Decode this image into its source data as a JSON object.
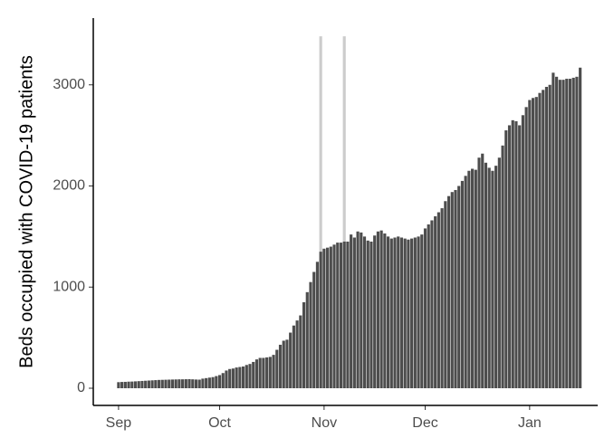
{
  "chart_data": {
    "type": "bar",
    "y_label": "Beds occupied with COVID-19 patients",
    "color": "#4d4d4d",
    "x": [
      0,
      1,
      2,
      3,
      4,
      5,
      6,
      7,
      8,
      9,
      10,
      11,
      12,
      13,
      14,
      15,
      16,
      17,
      18,
      19,
      20,
      21,
      22,
      23,
      24,
      25,
      26,
      27,
      28,
      29,
      30,
      31,
      32,
      33,
      34,
      35,
      36,
      37,
      38,
      39,
      40,
      41,
      42,
      43,
      44,
      45,
      46,
      47,
      48,
      49,
      50,
      51,
      52,
      53,
      54,
      55,
      56,
      57,
      58,
      59,
      60,
      61,
      62,
      63,
      64,
      65,
      66,
      67,
      68,
      69,
      70,
      71,
      72,
      73,
      74,
      75,
      76,
      77,
      78,
      79,
      80,
      81,
      82,
      83,
      84,
      85,
      86,
      87,
      88,
      89,
      90,
      91,
      92,
      93,
      94,
      95,
      96,
      97,
      98,
      99,
      100,
      101,
      102,
      103,
      104,
      105,
      106,
      107,
      108,
      109,
      110,
      111,
      112,
      113,
      114,
      115,
      116,
      117,
      118,
      119,
      120,
      121,
      122,
      123,
      124,
      125,
      126,
      127,
      128,
      129,
      130,
      131,
      132,
      133,
      134,
      135,
      136,
      137
    ],
    "values": [
      60,
      62,
      63,
      65,
      66,
      68,
      70,
      72,
      74,
      76,
      78,
      80,
      82,
      83,
      84,
      85,
      86,
      87,
      88,
      88,
      89,
      90,
      88,
      86,
      85,
      95,
      100,
      105,
      110,
      120,
      130,
      150,
      175,
      190,
      195,
      205,
      210,
      215,
      230,
      240,
      260,
      285,
      300,
      300,
      305,
      310,
      330,
      380,
      430,
      470,
      480,
      550,
      620,
      670,
      720,
      850,
      950,
      1050,
      1150,
      1250,
      1350,
      1380,
      1390,
      1400,
      1420,
      1440,
      1440,
      1450,
      1450,
      1520,
      1490,
      1550,
      1540,
      1500,
      1460,
      1450,
      1510,
      1550,
      1560,
      1530,
      1500,
      1480,
      1490,
      1500,
      1490,
      1480,
      1470,
      1480,
      1490,
      1500,
      1520,
      1580,
      1620,
      1660,
      1700,
      1740,
      1780,
      1850,
      1900,
      1940,
      1960,
      2000,
      2050,
      2100,
      2150,
      2170,
      2160,
      2280,
      2320,
      2230,
      2180,
      2150,
      2200,
      2280,
      2400,
      2550,
      2600,
      2650,
      2640,
      2600,
      2700,
      2780,
      2850,
      2870,
      2880,
      2920,
      2950,
      2980,
      3000,
      3120,
      3080,
      3050,
      3050,
      3060,
      3060,
      3070,
      3080,
      3170
    ],
    "highlights": {
      "color": "#cccccc",
      "x": [
        60,
        67
      ],
      "values": [
        3480,
        3480
      ]
    },
    "xlim": [
      -7.5,
      142.2
    ],
    "xticks": [
      {
        "value": 0,
        "label": "Sep"
      },
      {
        "value": 30,
        "label": "Oct"
      },
      {
        "value": 61,
        "label": "Nov"
      },
      {
        "value": 91,
        "label": "Dec"
      },
      {
        "value": 122,
        "label": "Jan"
      }
    ],
    "ylim": [
      -170,
      3660
    ],
    "yticks": [
      0,
      1000,
      2000,
      3000
    ],
    "grid": false
  }
}
